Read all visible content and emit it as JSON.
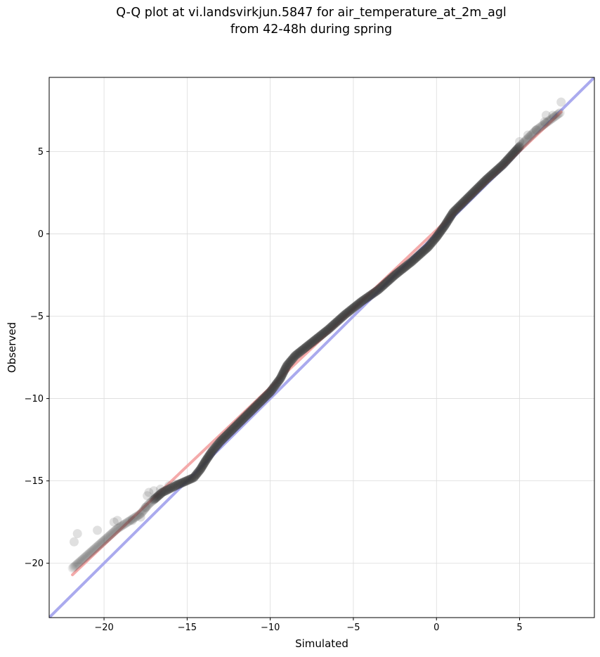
{
  "chart_data": {
    "type": "scatter",
    "title_lines": [
      "Q-Q plot at vi.landsvirkjun.5847 for air_temperature_at_2m_agl",
      "from 42-48h during spring"
    ],
    "xlabel": "Simulated",
    "ylabel": "Observed",
    "xlim": [
      -23.3,
      9.5
    ],
    "ylim": [
      -23.3,
      9.5
    ],
    "xticks": [
      -20,
      -15,
      -10,
      -5,
      0,
      5
    ],
    "yticks": [
      -20,
      -15,
      -10,
      -5,
      0,
      5
    ],
    "grid": true,
    "reference_line": {
      "color": "#aaaaee",
      "x": [
        -23.3,
        9.5
      ],
      "y": [
        -23.3,
        9.5
      ]
    },
    "fit_line": {
      "color": "#f4aaaa",
      "x": [
        -21.9,
        7.5
      ],
      "y": [
        -20.7,
        7.4
      ]
    },
    "quantile_curve": {
      "x": [
        -21.9,
        -19.2,
        -17.8,
        -17.3,
        -16.5,
        -15.5,
        -14.6,
        -14.2,
        -13.9,
        -13.5,
        -13.0,
        -12.0,
        -11.0,
        -10.0,
        -9.4,
        -9.0,
        -8.5,
        -7.5,
        -6.5,
        -5.5,
        -4.5,
        -3.5,
        -2.5,
        -1.5,
        -0.5,
        0.0,
        0.5,
        1.0,
        2.0,
        3.0,
        4.0,
        5.0,
        6.0,
        7.5
      ],
      "y": [
        -20.3,
        -17.9,
        -17.0,
        -16.4,
        -15.7,
        -15.2,
        -14.8,
        -14.3,
        -13.8,
        -13.2,
        -12.6,
        -11.6,
        -10.6,
        -9.6,
        -8.8,
        -8.0,
        -7.4,
        -6.6,
        -5.8,
        -4.9,
        -4.1,
        -3.4,
        -2.5,
        -1.7,
        -0.8,
        -0.2,
        0.5,
        1.3,
        2.3,
        3.3,
        4.2,
        5.3,
        6.3,
        7.4
      ]
    },
    "outlier_points": [
      {
        "x": -21.8,
        "y": -18.7
      },
      {
        "x": -21.6,
        "y": -18.2
      },
      {
        "x": -20.4,
        "y": -18.0
      },
      {
        "x": -19.4,
        "y": -17.5
      },
      {
        "x": -19.2,
        "y": -17.4
      },
      {
        "x": -18.3,
        "y": -17.4
      },
      {
        "x": -17.8,
        "y": -17.2
      },
      {
        "x": -17.5,
        "y": -16.6
      },
      {
        "x": -17.4,
        "y": -15.9
      },
      {
        "x": -17.3,
        "y": -15.7
      },
      {
        "x": -17.0,
        "y": -15.6
      },
      {
        "x": -16.6,
        "y": -15.5
      },
      {
        "x": -16.1,
        "y": -15.3
      },
      {
        "x": -15.7,
        "y": -15.2
      },
      {
        "x": 5.0,
        "y": 5.6
      },
      {
        "x": 5.5,
        "y": 6.0
      },
      {
        "x": 6.0,
        "y": 6.3
      },
      {
        "x": 6.5,
        "y": 6.8
      },
      {
        "x": 7.0,
        "y": 7.2
      },
      {
        "x": 6.6,
        "y": 7.2
      },
      {
        "x": 7.5,
        "y": 8.0
      }
    ]
  }
}
